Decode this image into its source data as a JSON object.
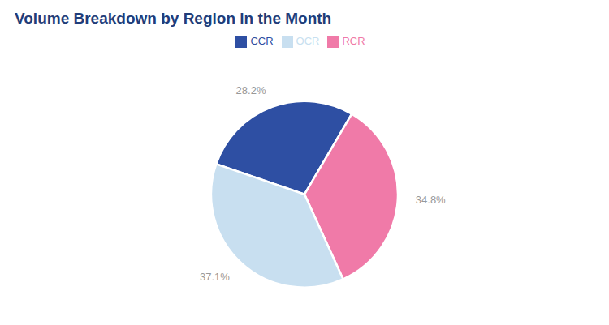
{
  "chart_data": {
    "type": "pie",
    "title": "Volume Breakdown by Region in the Month",
    "categories": [
      "CCR",
      "RCR",
      "OCR"
    ],
    "values": [
      28.2,
      34.8,
      37.1
    ],
    "value_labels": [
      "28.2%",
      "34.8%",
      "37.1%"
    ],
    "colors": [
      "#2e4fa3",
      "#f07aa8",
      "#c8dff0"
    ],
    "data_labels": true,
    "legend": "top"
  }
}
